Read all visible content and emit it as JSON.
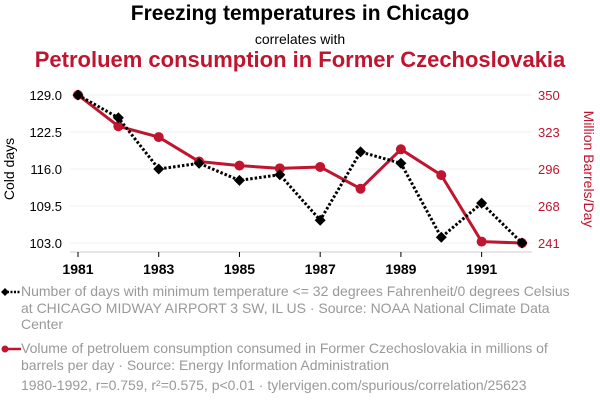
{
  "header": {
    "title": "Freezing temperatures in Chicago",
    "subtitle": "correlates with",
    "title2": "Petroluem consumption in Former Czechoslovakia"
  },
  "colors": {
    "series1": "#000000",
    "series2": "#c0152f",
    "grid": "#f0f0f0",
    "axis": "#cccccc",
    "legend_text": "#999999"
  },
  "chart_data": {
    "type": "line",
    "title": "Freezing temperatures in Chicago correlates with Petroluem consumption in Former Czechoslovakia",
    "x": [
      1981,
      1982,
      1983,
      1984,
      1985,
      1986,
      1987,
      1988,
      1989,
      1990,
      1991,
      1992
    ],
    "xticks": [
      "1981",
      "1983",
      "1985",
      "1987",
      "1989",
      "1991"
    ],
    "xlabel": "",
    "grid": true,
    "series": [
      {
        "name": "Cold days",
        "axis": "left",
        "style": "dotted-diamond",
        "values": [
          129,
          125,
          116,
          117,
          114,
          115,
          107,
          119,
          117,
          104,
          110,
          103
        ]
      },
      {
        "name": "Million Barrels/Day",
        "axis": "right",
        "style": "solid-circle",
        "values": [
          350,
          327,
          319,
          301,
          298,
          296,
          297,
          281,
          310,
          291,
          242,
          241
        ]
      }
    ],
    "y_left": {
      "label": "Cold days",
      "range": [
        103.0,
        129.0
      ],
      "ticks": [
        "129.0",
        "122.5",
        "116.0",
        "109.5",
        "103.0"
      ]
    },
    "y_right": {
      "label": "Million Barrels/Day",
      "range": [
        241,
        350
      ],
      "ticks": [
        "350",
        "323",
        "296",
        "268",
        "241"
      ]
    },
    "legend_position": "bottom"
  },
  "legend": {
    "series1": "Number of days with minimum temperature <= 32 degrees Fahrenheit/0 degrees Celsius at CHICAGO MIDWAY AIRPORT 3 SW, IL US · Source: NOAA National Climate Data Center",
    "series2": "Volume of petroluem consumption consumed in Former Czechoslovakia in millions of barrels per day · Source: Energy Information Administration"
  },
  "footer": "1980-1992, r=0.759, r²=0.575, p<0.01 · tylervigen.com/spurious/correlation/25623"
}
